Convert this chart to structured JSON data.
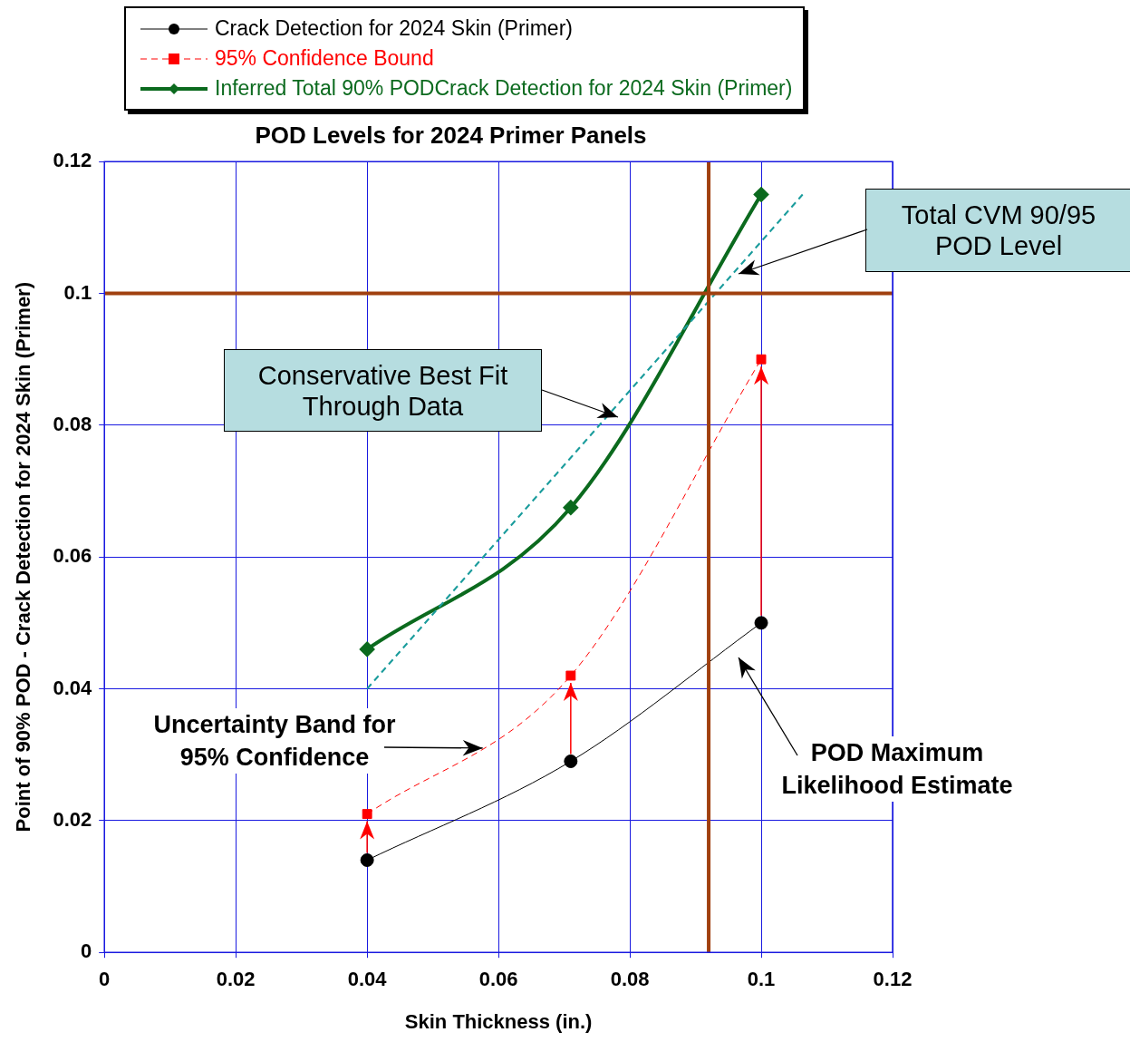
{
  "chart_data": {
    "type": "line",
    "title": "POD Levels for 2024 Primer Panels",
    "xlabel": "Skin Thickness (in.)",
    "ylabel": "Point of 90% POD - Crack Detection for 2024 Skin (Primer)",
    "xlim": [
      0,
      0.12
    ],
    "xticks": [
      0,
      0.02,
      0.04,
      0.06,
      0.08,
      0.1,
      0.12
    ],
    "ylim": [
      0,
      0.12
    ],
    "yticks": [
      0,
      0.02,
      0.04,
      0.06,
      0.08,
      0.1,
      0.12
    ],
    "x": [
      0.04,
      0.071,
      0.1
    ],
    "series": [
      {
        "name": "Crack Detection for 2024 Skin (Primer)",
        "color": "#000000",
        "values": [
          0.014,
          0.029,
          0.05
        ],
        "marker": "circle",
        "line_style": "solid"
      },
      {
        "name": "95% Confidence Bound",
        "color": "#ff0000",
        "values": [
          0.021,
          0.042,
          0.09
        ],
        "marker": "square",
        "line_style": "dashed"
      },
      {
        "name": "Inferred Total 90% PODCrack Detection for 2024 Skin (Primer)",
        "color": "#0b6a1e",
        "values": [
          0.046,
          0.0675,
          0.115
        ],
        "marker": "diamond",
        "line_style": "solid"
      },
      {
        "type": "line",
        "color": "#1a9c9c",
        "x": [
          0.04,
          0.1063
        ],
        "values": [
          0.04,
          0.115
        ],
        "marker": "none",
        "line_style": "dashed"
      }
    ],
    "ref_lines": [
      {
        "axis": "y",
        "value": 0.1,
        "color": "#a0400f"
      },
      {
        "axis": "x",
        "value": 0.092,
        "color": "#a0400f"
      }
    ],
    "annotations": [
      "Total CVM 90/95\nPOD Level",
      "Conservative Best Fit\nThrough Data",
      {
        "text": "Uncertainty Band for\n95% Confidence",
        "x": 0.0576,
        "y": 0.031
      },
      "POD Maximum\nLikelihood Estimate"
    ],
    "grid": true,
    "legend": "top"
  }
}
